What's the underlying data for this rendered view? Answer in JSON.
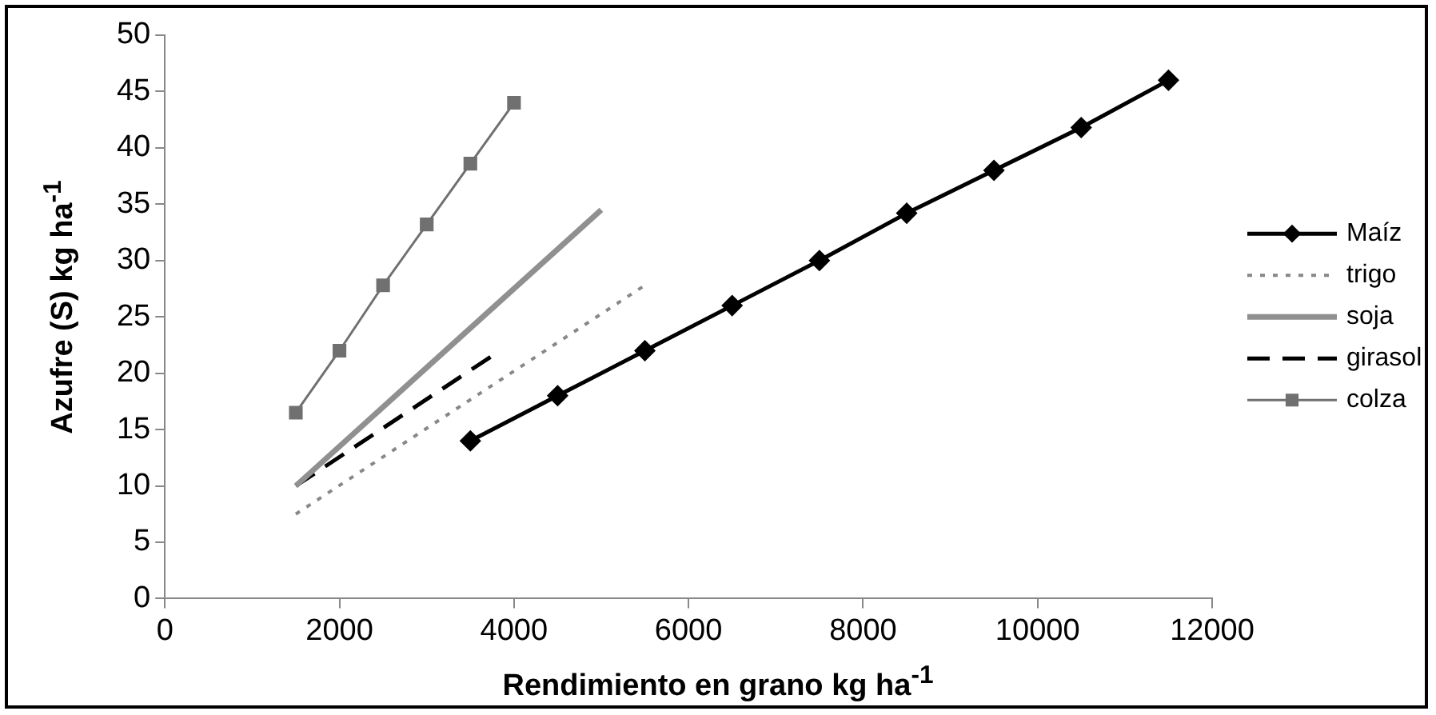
{
  "chart_data": {
    "type": "line",
    "xlabel": "Rendimiento en grano kg ha$^{-1}$",
    "ylabel": "Azufre (S) kg ha$^{-1}$",
    "xlim": [
      0,
      12000
    ],
    "xticks": [
      0,
      2000,
      4000,
      6000,
      8000,
      10000,
      12000
    ],
    "ylim": [
      0,
      50
    ],
    "yticks": [
      0,
      5,
      10,
      15,
      20,
      25,
      30,
      35,
      40,
      45,
      50
    ],
    "grid": false,
    "legend": "right",
    "series": [
      {
        "name": "Maíz",
        "type": "line",
        "color": "#000000",
        "marker": "diamond",
        "line_style": "solid",
        "x": [
          3500,
          4500,
          5500,
          6500,
          7500,
          8500,
          9500,
          10500,
          11500
        ],
        "values": [
          14,
          18,
          22,
          26,
          30,
          34.2,
          38,
          41.8,
          46
        ]
      },
      {
        "name": "trigo",
        "type": "line",
        "color": "#888888",
        "marker": "none",
        "line_style": "dotted",
        "x": [
          1500,
          5500
        ],
        "values": [
          7.5,
          27.8
        ]
      },
      {
        "name": "soja",
        "type": "line",
        "color": "#909090",
        "marker": "none",
        "line_style": "solid",
        "x": [
          1500,
          5000
        ],
        "values": [
          10,
          34.5
        ]
      },
      {
        "name": "girasol",
        "type": "line",
        "color": "#000000",
        "marker": "none",
        "line_style": "dashed",
        "x": [
          1500,
          3800
        ],
        "values": [
          10,
          21.8
        ]
      },
      {
        "name": "colza",
        "type": "line",
        "color": "#707070",
        "marker": "square",
        "line_style": "solid",
        "x": [
          1500,
          2000,
          2500,
          3000,
          3500,
          4000
        ],
        "values": [
          16.5,
          22,
          27.8,
          33.2,
          38.6,
          44
        ]
      }
    ]
  }
}
